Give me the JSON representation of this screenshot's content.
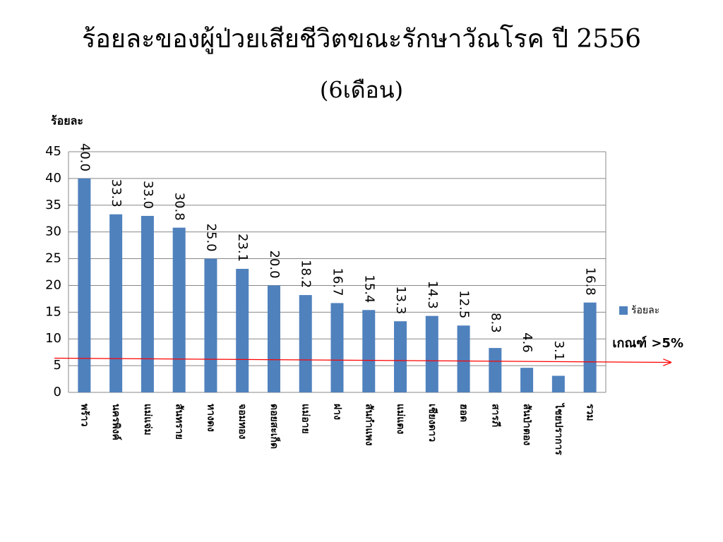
{
  "chart_data": {
    "type": "bar",
    "title": "ร้อยละของผู้ป่วยเสียชีวิตขณะรักษาวัณโรค ปี 2556",
    "subtitle": "(6เดือน)",
    "y_label": "ร้อยละ",
    "categories": [
      "พร้าว",
      "นครพิงค์",
      "แม่แจ่ม",
      "สันทราย",
      "หางดง",
      "จอมทอง",
      "ดอยสะเก็ด",
      "แม่อาย",
      "ฝาง",
      "สันกำแพง",
      "แม่แตง",
      "เชียงดาว",
      "ฮอด",
      "สารภี",
      "สันป่าตอง",
      "ไชยปราการ",
      "รวม"
    ],
    "series": [
      {
        "name": "ร้อยละ",
        "color": "#4f81bd",
        "values": [
          40,
          33.3,
          33,
          30.8,
          25,
          23.1,
          20,
          18.2,
          16.7,
          15.4,
          13.3,
          14.3,
          12.5,
          8.3,
          4.6,
          3.1,
          16.8
        ],
        "value_labels": [
          "40.0",
          "33.3",
          "33.0",
          "30.8",
          "25.0",
          "23.1",
          "20.0",
          "18.2",
          "16.7",
          "15.4",
          "13.3",
          "14.3",
          "12.5",
          "8.3",
          "4.6",
          "3.1",
          "16.8"
        ]
      }
    ],
    "ylim": [
      0,
      45
    ],
    "yticks": [
      0,
      5,
      10,
      15,
      20,
      25,
      30,
      35,
      40,
      45
    ],
    "grid": true,
    "legend": "right",
    "reference_line": {
      "value": 6,
      "color": "#ff0000",
      "label": "เกณฑ์ >5%"
    }
  }
}
